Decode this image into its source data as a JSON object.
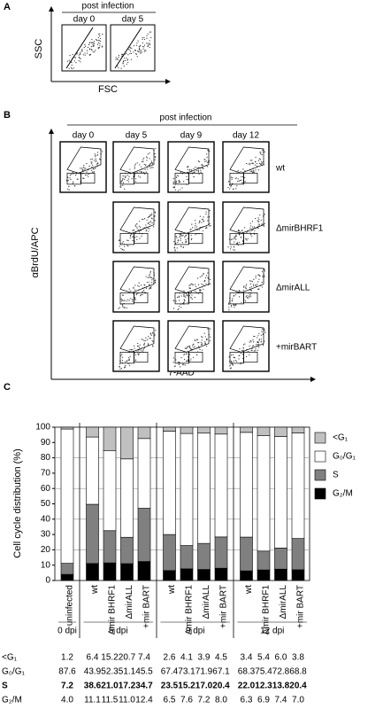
{
  "panel_a": {
    "label": "A",
    "header": "post infection",
    "days": [
      "day 0",
      "day 5"
    ],
    "y_label": "SSC",
    "x_label": "FSC"
  },
  "panel_b": {
    "label": "B",
    "header": "post infection",
    "days": [
      "day 0",
      "day 5",
      "day 9",
      "day 12"
    ],
    "rows": [
      "wt",
      "ΔmirBHRF1",
      "ΔmirALL",
      "+mirBART"
    ],
    "y_label": "αBrdU/APC",
    "x_label": "7-AAD"
  },
  "chart_data": {
    "type": "bar",
    "stacked": true,
    "panel_label": "C",
    "y_label": "Cell cycle distribution (%)",
    "groups": [
      {
        "label": "0 dpi",
        "categories": [
          "uninfected"
        ]
      },
      {
        "label": "5 dpi",
        "categories": [
          "wt",
          "Δmir BHRF1",
          "ΔmirALL",
          "+mir BART"
        ]
      },
      {
        "label": "9 dpi",
        "categories": [
          "wt",
          "Δmir BHRF1",
          "ΔmirALL",
          "+mir BART"
        ]
      },
      {
        "label": "12 dpi",
        "categories": [
          "wt",
          "Δmir BHRF1",
          "ΔmirALL",
          "+mir BART"
        ]
      }
    ],
    "series": [
      {
        "name": "<G₁",
        "color": "#c0c0c0",
        "values": [
          1.2,
          6.4,
          15.2,
          20.7,
          7.4,
          2.6,
          4.1,
          3.9,
          4.5,
          3.4,
          5.4,
          6.0,
          3.8
        ],
        "value_labels": [
          "1.2",
          "6.4",
          "15.2",
          "20.7",
          "7.4",
          "2.6",
          "4.1",
          "3.9",
          "4.5",
          "3.4",
          "5.4",
          "6.0",
          "3.8"
        ]
      },
      {
        "name": "G₀/G₁",
        "color": "#ffffff",
        "values": [
          87.6,
          43.9,
          52.3,
          51.1,
          45.5,
          67.4,
          73.1,
          71.9,
          67.1,
          68.3,
          75.4,
          72.8,
          68.8
        ],
        "value_labels": [
          "87.6",
          "43.9",
          "52.3",
          "51.1",
          "45.5",
          "67.4",
          "73.1",
          "71.9",
          "67.1",
          "68.3",
          "75.4",
          "72.8",
          "68.8"
        ]
      },
      {
        "name": "S",
        "color": "#808080",
        "bold": true,
        "values": [
          7.2,
          38.6,
          21.0,
          17.2,
          34.7,
          23.5,
          15.2,
          17.0,
          20.4,
          22.0,
          12.3,
          13.8,
          20.4
        ],
        "value_labels": [
          "7.2",
          "38.6",
          "21.0",
          "17.2",
          "34.7",
          "23.5",
          "15.2",
          "17.0",
          "20.4",
          "22.0",
          "12.3",
          "13.8",
          "20.4"
        ]
      },
      {
        "name": "G₂/M",
        "color": "#000000",
        "values": [
          4.0,
          11.1,
          11.5,
          11.0,
          12.4,
          6.5,
          7.6,
          7.2,
          8.0,
          6.3,
          6.9,
          7.4,
          7.0
        ],
        "value_labels": [
          "4.0",
          "11.1",
          "11.5",
          "11.0",
          "12.4",
          "6.5",
          "7.6",
          "7.2",
          "8.0",
          "6.3",
          "6.9",
          "7.4",
          "7.0"
        ]
      }
    ],
    "ylim": [
      0,
      100
    ],
    "yticks": [
      0,
      10,
      20,
      30,
      40,
      50,
      60,
      70,
      80,
      90,
      100
    ],
    "grid": true
  }
}
